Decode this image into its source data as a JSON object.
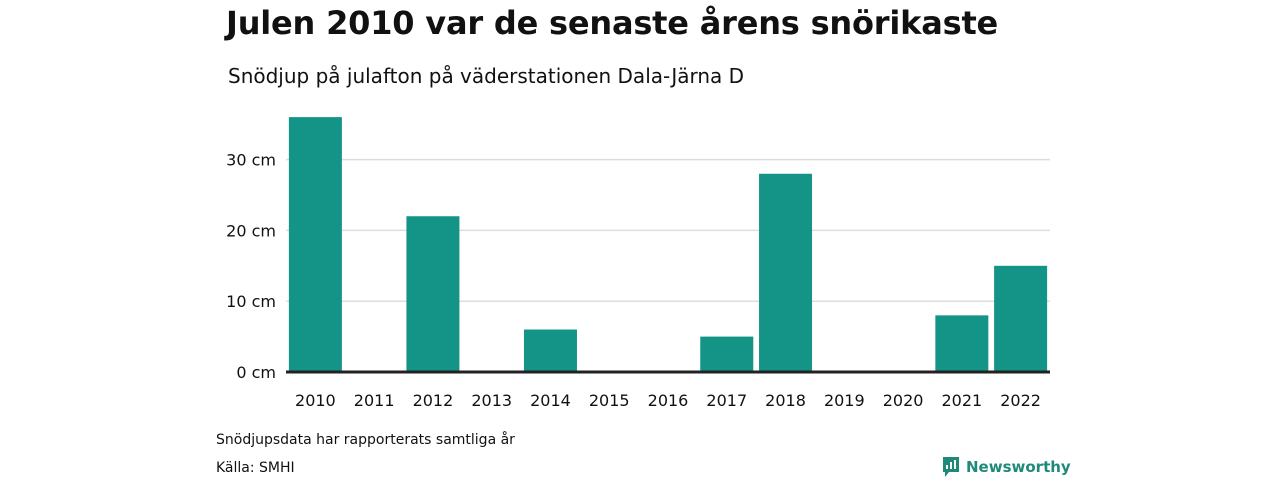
{
  "header": {
    "title": "Julen 2010 var de senaste årens snörikaste",
    "subtitle": "Snödjup på julafton på väderstationen Dala-Järna D"
  },
  "footer": {
    "note": "Snödjupsdata har rapporterats samtliga år",
    "source": "Källa: SMHI",
    "brand": "Newsworthy"
  },
  "colors": {
    "bar": "#139486",
    "grid": "#dddddd",
    "baseline": "#222222",
    "text": "#111111",
    "brand": "#1f8a7a"
  },
  "icons": {
    "brand_logo": "newsworthy-logo-icon"
  },
  "chart_data": {
    "type": "bar",
    "categories": [
      "2010",
      "2011",
      "2012",
      "2013",
      "2014",
      "2015",
      "2016",
      "2017",
      "2018",
      "2019",
      "2020",
      "2021",
      "2022"
    ],
    "values": [
      36,
      0,
      22,
      0,
      6,
      0,
      0,
      5,
      28,
      0,
      0,
      8,
      15
    ],
    "y_ticks": [
      0,
      10,
      20,
      30
    ],
    "y_tick_labels": [
      "0 cm",
      "10 cm",
      "20 cm",
      "30 cm"
    ],
    "ylim": [
      0,
      36
    ],
    "grid": true,
    "legend": "none"
  }
}
